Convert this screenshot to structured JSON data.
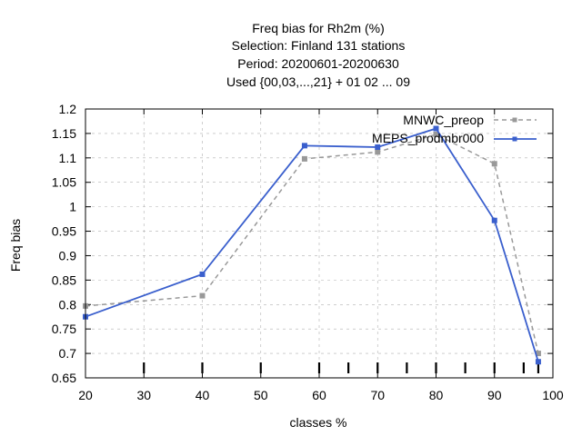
{
  "chart_data": {
    "type": "line",
    "title_lines": [
      "Freq bias  for Rh2m (%)",
      "Selection: Finland     131 stations",
      "Period: 20200601-20200630",
      "Used {00,03,...,21} + 01 02 ... 09"
    ],
    "xlabel": "classes %",
    "ylabel": "Freq bias",
    "xlim": [
      20,
      100
    ],
    "ylim": [
      0.65,
      1.2
    ],
    "x_ticks": [
      "20",
      "30",
      "40",
      "50",
      "60",
      "70",
      "80",
      "90",
      "100"
    ],
    "y_ticks": [
      "0.65",
      "0.7",
      "0.75",
      "0.8",
      "0.85",
      "0.9",
      "0.95",
      "1",
      "1.05",
      "1.1",
      "1.15",
      "1.2"
    ],
    "bottom_marker_x": [
      30,
      40,
      50,
      60,
      65,
      70,
      75,
      80,
      85,
      90,
      95,
      97.5
    ],
    "grid": true,
    "legend_position": "top-right",
    "series": [
      {
        "name": "MNWC_preop",
        "color": "#999999",
        "style": "dashed",
        "marker": "circle",
        "x": [
          20,
          40,
          57.5,
          70,
          80,
          90,
          97.5
        ],
        "y": [
          0.797,
          0.818,
          1.098,
          1.112,
          1.148,
          1.088,
          0.7
        ]
      },
      {
        "name": "MEPS_prodmbr000",
        "color": "#3a5fcd",
        "style": "solid",
        "marker": "square",
        "x": [
          20,
          40,
          57.5,
          70,
          80,
          90,
          97.5
        ],
        "y": [
          0.775,
          0.862,
          1.125,
          1.122,
          1.16,
          0.972,
          0.683
        ]
      }
    ]
  }
}
